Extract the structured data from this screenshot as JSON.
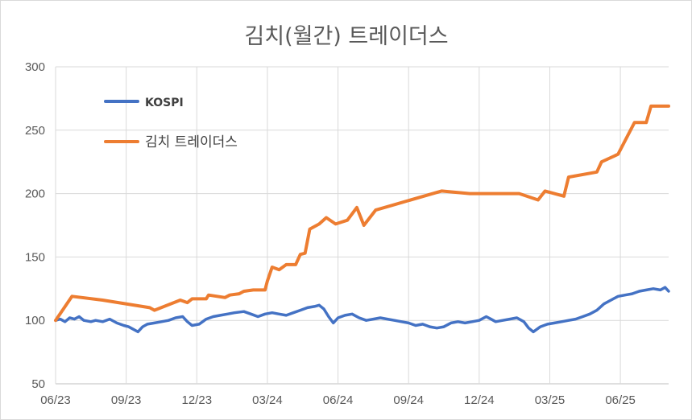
{
  "chart_data": {
    "type": "line",
    "title": "김치(월간) 트레이더스",
    "xlabel": "",
    "ylabel": "",
    "ylim": [
      50,
      300
    ],
    "yticks": [
      50,
      100,
      150,
      200,
      250,
      300
    ],
    "x_ticks": [
      "06/23",
      "09/23",
      "12/23",
      "03/24",
      "06/24",
      "09/24",
      "12/24",
      "03/25",
      "06/25"
    ],
    "grid": "vertical-and-horizontal",
    "legend_position": "top-left",
    "series": [
      {
        "name": "KOSPI",
        "color": "#4472c4",
        "points": [
          [
            0,
            100
          ],
          [
            0.2,
            101
          ],
          [
            0.4,
            99
          ],
          [
            0.6,
            102
          ],
          [
            0.8,
            101
          ],
          [
            1.0,
            103
          ],
          [
            1.2,
            100
          ],
          [
            1.5,
            99
          ],
          [
            1.7,
            100
          ],
          [
            2.0,
            99
          ],
          [
            2.3,
            101
          ],
          [
            2.6,
            98
          ],
          [
            2.9,
            96
          ],
          [
            3.1,
            95
          ],
          [
            3.3,
            93
          ],
          [
            3.5,
            91
          ],
          [
            3.7,
            95
          ],
          [
            3.9,
            97
          ],
          [
            4.2,
            98
          ],
          [
            4.5,
            99
          ],
          [
            4.8,
            100
          ],
          [
            5.1,
            102
          ],
          [
            5.4,
            103
          ],
          [
            5.6,
            99
          ],
          [
            5.8,
            96
          ],
          [
            6.1,
            97
          ],
          [
            6.4,
            101
          ],
          [
            6.7,
            103
          ],
          [
            7.0,
            104
          ],
          [
            7.3,
            105
          ],
          [
            7.6,
            106
          ],
          [
            8.0,
            107
          ],
          [
            8.3,
            105
          ],
          [
            8.6,
            103
          ],
          [
            8.9,
            105
          ],
          [
            9.2,
            106
          ],
          [
            9.5,
            105
          ],
          [
            9.8,
            104
          ],
          [
            10.1,
            106
          ],
          [
            10.4,
            108
          ],
          [
            10.7,
            110
          ],
          [
            11.0,
            111
          ],
          [
            11.2,
            112
          ],
          [
            11.4,
            109
          ],
          [
            11.6,
            103
          ],
          [
            11.8,
            98
          ],
          [
            12.0,
            102
          ],
          [
            12.3,
            104
          ],
          [
            12.6,
            105
          ],
          [
            12.9,
            102
          ],
          [
            13.2,
            100
          ],
          [
            13.5,
            101
          ],
          [
            13.8,
            102
          ],
          [
            14.1,
            101
          ],
          [
            14.4,
            100
          ],
          [
            14.7,
            99
          ],
          [
            15.0,
            98
          ],
          [
            15.3,
            96
          ],
          [
            15.6,
            97
          ],
          [
            15.9,
            95
          ],
          [
            16.2,
            94
          ],
          [
            16.5,
            95
          ],
          [
            16.8,
            98
          ],
          [
            17.1,
            99
          ],
          [
            17.4,
            98
          ],
          [
            17.7,
            99
          ],
          [
            18.0,
            100
          ],
          [
            18.3,
            103
          ],
          [
            18.5,
            101
          ],
          [
            18.7,
            99
          ],
          [
            19.0,
            100
          ],
          [
            19.3,
            101
          ],
          [
            19.6,
            102
          ],
          [
            19.9,
            99
          ],
          [
            20.1,
            94
          ],
          [
            20.3,
            91
          ],
          [
            20.6,
            95
          ],
          [
            20.9,
            97
          ],
          [
            21.2,
            98
          ],
          [
            21.5,
            99
          ],
          [
            21.8,
            100
          ],
          [
            22.1,
            101
          ],
          [
            22.4,
            103
          ],
          [
            22.7,
            105
          ],
          [
            23.0,
            108
          ],
          [
            23.3,
            113
          ],
          [
            23.6,
            116
          ],
          [
            23.9,
            119
          ],
          [
            24.2,
            120
          ],
          [
            24.5,
            121
          ],
          [
            24.8,
            123
          ],
          [
            25.1,
            124
          ],
          [
            25.4,
            125
          ],
          [
            25.7,
            124
          ],
          [
            25.9,
            126
          ],
          [
            26.05,
            123
          ]
        ]
      },
      {
        "name": "김치 트레이더스",
        "color": "#ed7d31",
        "points": [
          [
            0,
            100
          ],
          [
            0.7,
            119
          ],
          [
            2.0,
            116
          ],
          [
            4.0,
            110
          ],
          [
            4.2,
            108
          ],
          [
            5.3,
            116
          ],
          [
            5.6,
            114
          ],
          [
            5.8,
            117
          ],
          [
            6.4,
            117
          ],
          [
            6.5,
            120
          ],
          [
            7.2,
            118
          ],
          [
            7.4,
            120
          ],
          [
            7.8,
            121
          ],
          [
            8.0,
            123
          ],
          [
            8.4,
            124
          ],
          [
            8.9,
            124
          ],
          [
            9.0,
            131
          ],
          [
            9.2,
            142
          ],
          [
            9.5,
            140
          ],
          [
            9.8,
            144
          ],
          [
            10.2,
            144
          ],
          [
            10.4,
            152
          ],
          [
            10.6,
            153
          ],
          [
            10.8,
            172
          ],
          [
            11.2,
            176
          ],
          [
            11.5,
            181
          ],
          [
            11.9,
            176
          ],
          [
            12.4,
            179
          ],
          [
            12.8,
            189
          ],
          [
            13.1,
            175
          ],
          [
            13.6,
            187
          ],
          [
            16.4,
            202
          ],
          [
            17.6,
            200
          ],
          [
            19.7,
            200
          ],
          [
            20.5,
            195
          ],
          [
            20.8,
            202
          ],
          [
            21.6,
            198
          ],
          [
            21.8,
            213
          ],
          [
            23.0,
            217
          ],
          [
            23.2,
            225
          ],
          [
            23.9,
            231
          ],
          [
            24.6,
            256
          ],
          [
            25.1,
            256
          ],
          [
            25.3,
            269
          ],
          [
            26.05,
            269
          ]
        ]
      }
    ]
  }
}
